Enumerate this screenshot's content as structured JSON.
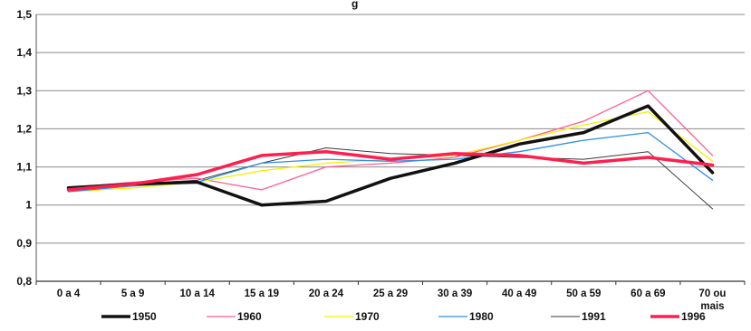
{
  "chart_data": {
    "type": "line",
    "title_fragment": "g",
    "categories": [
      "0 a 4",
      "5 a 9",
      "10 a 14",
      "15 a 19",
      "20 a 24",
      "25 a 29",
      "30 a 39",
      "40 a 49",
      "50 a 59",
      "60 a 69",
      "70 ou mais"
    ],
    "yticks": [
      "0,8",
      "0,9",
      "1",
      "1,1",
      "1,2",
      "1,3",
      "1,4",
      "1,5"
    ],
    "ylim": [
      0.8,
      1.5
    ],
    "grid": true,
    "legend_position": "bottom",
    "series": [
      {
        "name": "1950",
        "color": "#111111",
        "width": 3.5,
        "values": [
          1.045,
          1.055,
          1.06,
          1.0,
          1.01,
          1.07,
          1.11,
          1.16,
          1.19,
          1.26,
          1.085
        ]
      },
      {
        "name": "1960",
        "color": "#ff5f8f",
        "width": 1.3,
        "values": [
          1.045,
          1.06,
          1.07,
          1.04,
          1.1,
          1.11,
          1.125,
          1.17,
          1.22,
          1.3,
          1.13
        ]
      },
      {
        "name": "1970",
        "color": "#f2f200",
        "width": 1.3,
        "values": [
          1.035,
          1.045,
          1.06,
          1.09,
          1.11,
          1.12,
          1.13,
          1.17,
          1.21,
          1.245,
          1.115
        ]
      },
      {
        "name": "1980",
        "color": "#2b8fe6",
        "width": 1.3,
        "values": [
          1.035,
          1.05,
          1.06,
          1.11,
          1.12,
          1.115,
          1.12,
          1.14,
          1.17,
          1.19,
          1.065
        ]
      },
      {
        "name": "1991",
        "color": "#3a3a3a",
        "width": 1.0,
        "values": [
          1.04,
          1.055,
          1.065,
          1.11,
          1.15,
          1.135,
          1.13,
          1.125,
          1.12,
          1.14,
          0.99
        ]
      },
      {
        "name": "1996",
        "color": "#ff1f4f",
        "width": 3.5,
        "values": [
          1.04,
          1.055,
          1.08,
          1.13,
          1.14,
          1.12,
          1.135,
          1.13,
          1.11,
          1.125,
          1.105
        ]
      }
    ]
  }
}
